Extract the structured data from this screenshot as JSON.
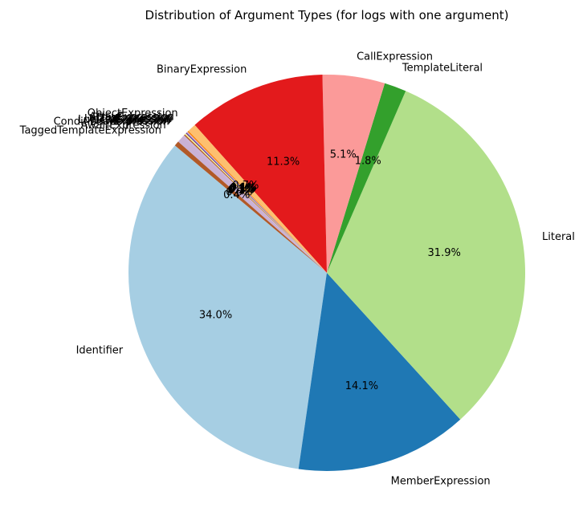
{
  "chart_data": {
    "type": "pie",
    "title": "Distribution of Argument Types (for logs with one argument)",
    "start_angle_deg": 140,
    "direction": "counterclockwise",
    "slices": [
      {
        "label": "Identifier",
        "value": 34.0,
        "pct": "34.0%",
        "color": "#a6cee3"
      },
      {
        "label": "MemberExpression",
        "value": 14.1,
        "pct": "14.1%",
        "color": "#1f78b4"
      },
      {
        "label": "Literal",
        "value": 31.9,
        "pct": "31.9%",
        "color": "#b2df8a"
      },
      {
        "label": "TemplateLiteral",
        "value": 1.8,
        "pct": "1.8%",
        "color": "#33a02c"
      },
      {
        "label": "CallExpression",
        "value": 5.1,
        "pct": "5.1%",
        "color": "#fb9a99"
      },
      {
        "label": "BinaryExpression",
        "value": 11.3,
        "pct": "11.3%",
        "color": "#e31a1c"
      },
      {
        "label": "ObjectExpression",
        "value": 0.7,
        "pct": "0.7%",
        "color": "#fdbf6f"
      },
      {
        "label": "ArrayExpression",
        "value": 0.1,
        "pct": "0.1%",
        "color": "#ff7f00"
      },
      {
        "label": "ThisExpression",
        "value": 0.1,
        "pct": "0.1%",
        "color": "#cab2d6"
      },
      {
        "label": "UnaryExpression",
        "value": 0.1,
        "pct": "0.1%",
        "color": "#6a3d9a"
      },
      {
        "label": "LogicalExpression",
        "value": 0.1,
        "pct": "0.1%",
        "color": "#ffff99"
      },
      {
        "label": "NewExpression",
        "value": 0.1,
        "pct": "0.1%",
        "color": "#b15928"
      },
      {
        "label": "ConditionalExpression",
        "value": 0.1,
        "pct": "0.1%",
        "color": "#cab2d6"
      },
      {
        "label": "AwaitExpression",
        "value": 0.6,
        "pct": "0.6%",
        "color": "#cab2d6"
      },
      {
        "label": "TaggedTemplateExpression",
        "value": 0.4,
        "pct": "0.4%",
        "color": "#b15928"
      }
    ]
  }
}
